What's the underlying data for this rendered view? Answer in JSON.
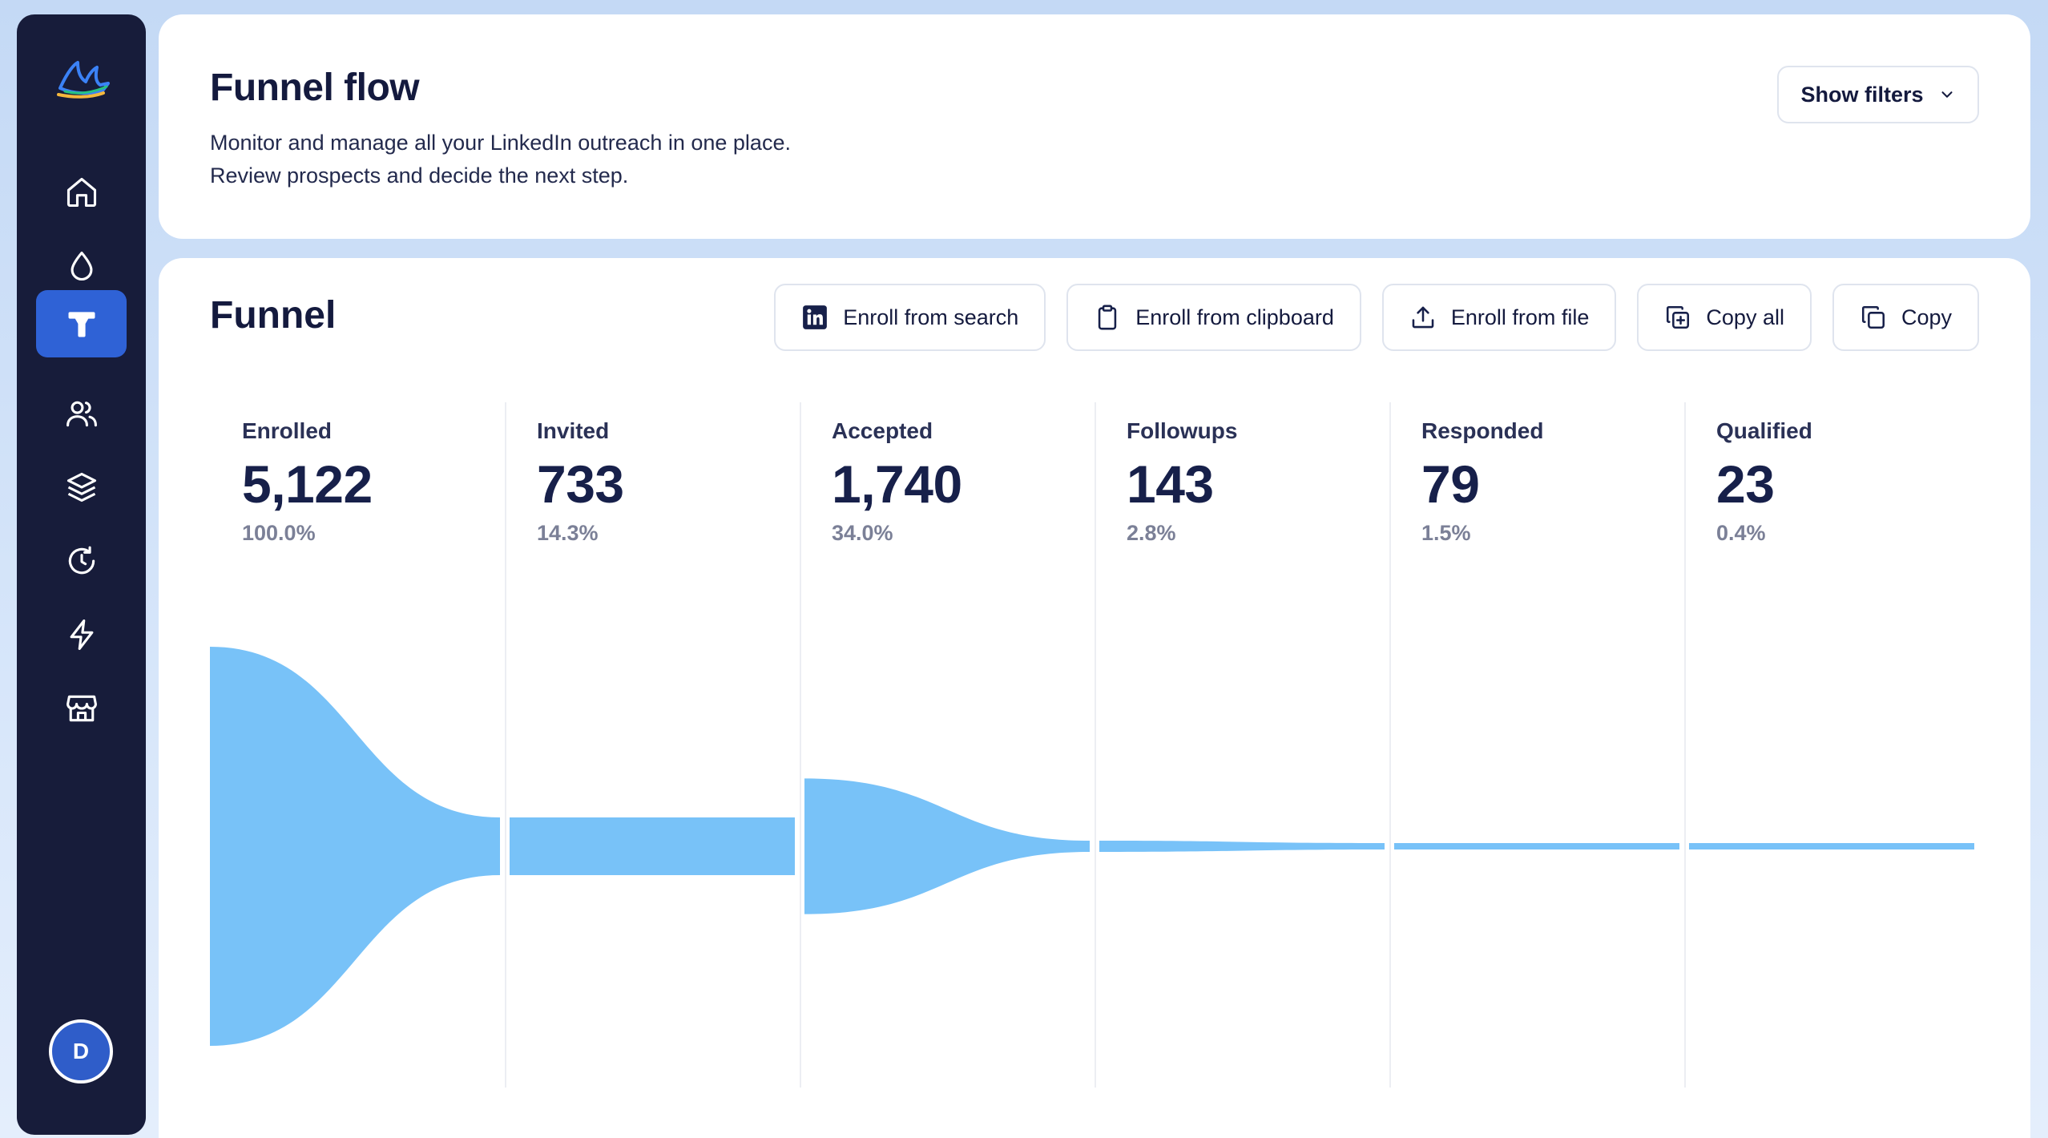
{
  "header": {
    "title": "Funnel flow",
    "description_line1": "Monitor and manage all your LinkedIn outreach in one place.",
    "description_line2": "Review prospects and decide the next step.",
    "filters_button": "Show filters"
  },
  "sidebar": {
    "items": [
      {
        "icon": "home-icon"
      },
      {
        "icon": "droplet-icon"
      },
      {
        "icon": "funnel-icon",
        "active": true
      },
      {
        "icon": "users-icon"
      },
      {
        "icon": "layers-icon"
      },
      {
        "icon": "history-icon"
      },
      {
        "icon": "lightning-icon"
      },
      {
        "icon": "store-icon"
      }
    ],
    "avatar_initial": "D"
  },
  "funnel": {
    "title": "Funnel",
    "actions": [
      {
        "label": "Enroll from search",
        "icon": "linkedin-icon"
      },
      {
        "label": "Enroll from clipboard",
        "icon": "clipboard-icon"
      },
      {
        "label": "Enroll from file",
        "icon": "upload-icon"
      },
      {
        "label": "Copy all",
        "icon": "copy-all-icon"
      },
      {
        "label": "Copy",
        "icon": "copy-icon"
      }
    ],
    "stages": [
      {
        "label": "Enrolled",
        "value": "5,122",
        "pct": "100.0%"
      },
      {
        "label": "Invited",
        "value": "733",
        "pct": "14.3%"
      },
      {
        "label": "Accepted",
        "value": "1,740",
        "pct": "34.0%"
      },
      {
        "label": "Followups",
        "value": "143",
        "pct": "2.8%"
      },
      {
        "label": "Responded",
        "value": "79",
        "pct": "1.5%"
      },
      {
        "label": "Qualified",
        "value": "23",
        "pct": "0.4%"
      }
    ]
  },
  "colors": {
    "sidebar_bg": "#171c3a",
    "active_nav": "#2f62d6",
    "funnel_fill": "#78c2f8",
    "text_primary": "#141a3e",
    "text_muted": "#7b8097"
  }
}
